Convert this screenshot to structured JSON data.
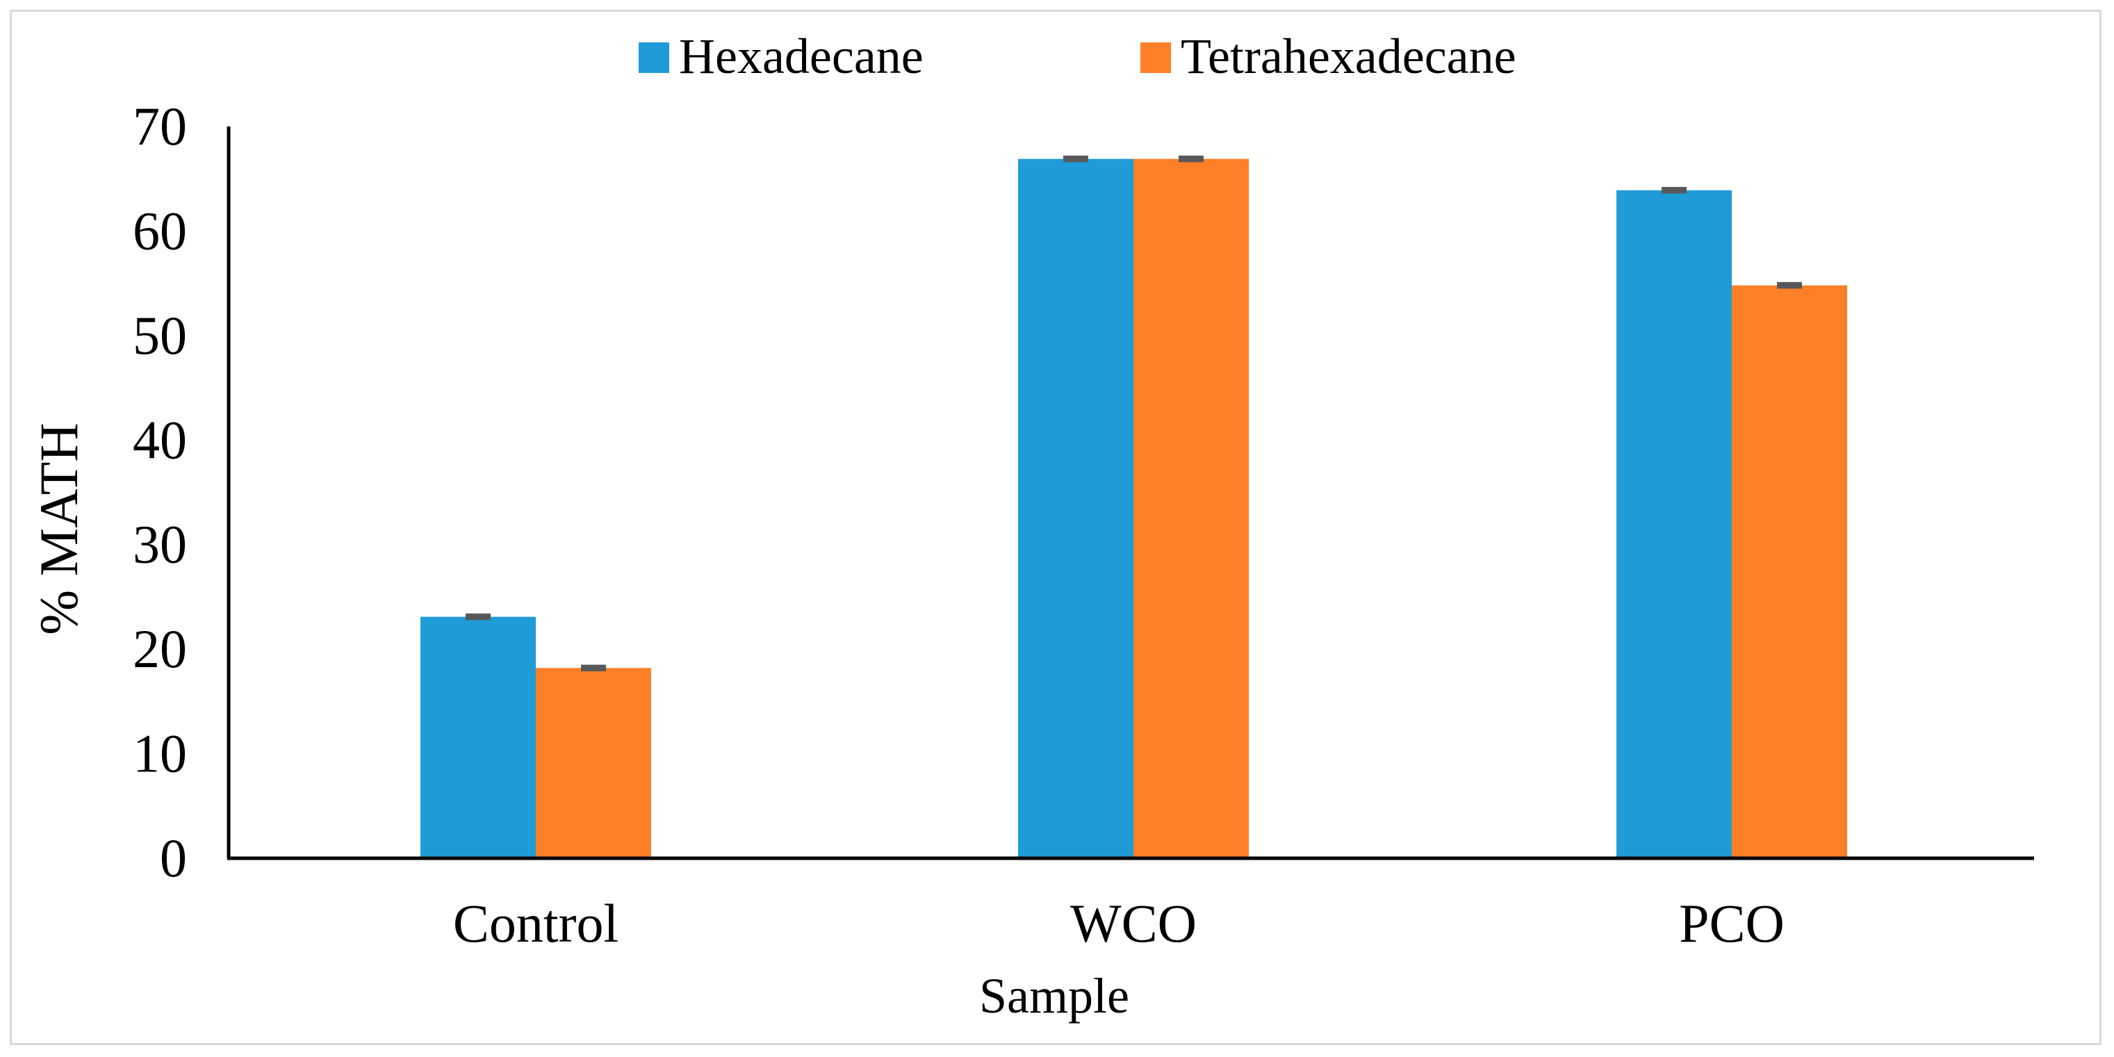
{
  "chart_data": {
    "type": "bar",
    "title": "",
    "xlabel": "Sample",
    "ylabel": "% MATH",
    "categories": [
      "Control",
      "WCO",
      "PCO"
    ],
    "series": [
      {
        "name": "Hexadecane",
        "color": "#1f9bd7",
        "values": [
          23.1,
          66.9,
          63.9
        ],
        "errors": [
          0.15,
          0.15,
          0.15
        ]
      },
      {
        "name": "Tetrahexadecane",
        "color": "#fd7f28",
        "values": [
          18.2,
          66.9,
          54.8
        ],
        "errors": [
          0.15,
          0.15,
          0.15
        ]
      }
    ],
    "ylim": [
      0,
      70
    ],
    "yticks": [
      "0",
      "10",
      "20",
      "30",
      "40",
      "50",
      "60",
      "70"
    ],
    "grid": false,
    "legend_position": "top-center",
    "error_bar_color": "#595959",
    "axis_color": "#000000"
  }
}
